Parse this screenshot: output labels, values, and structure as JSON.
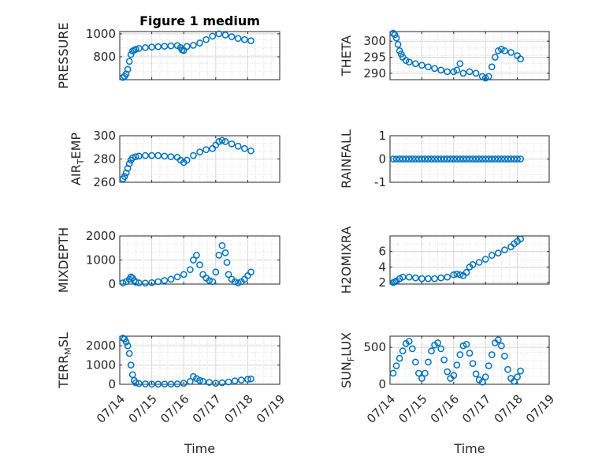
{
  "figure": {
    "title": "Figure 1 medium"
  },
  "colors": {
    "marker": "#0072BD",
    "grid": "#d9d9d9",
    "axis": "#262626"
  },
  "chart_data": [
    {
      "id": "pressure",
      "type": "scatter",
      "title": "Figure 1 medium",
      "ylabel": "PRESSURE",
      "ylabel_sub": "",
      "ylabel_tail": "",
      "ylim": [
        600,
        1020
      ],
      "yticks": [
        800,
        1000
      ],
      "yticklabels": [
        "800",
        "1000"
      ],
      "xlim": [
        0,
        5
      ],
      "xticks": [],
      "xticklabels": [],
      "xlabel": "",
      "grid": true,
      "x": [
        0.1,
        0.15,
        0.2,
        0.25,
        0.3,
        0.35,
        0.4,
        0.45,
        0.5,
        0.6,
        0.8,
        1.0,
        1.2,
        1.4,
        1.6,
        1.8,
        1.9,
        1.95,
        2.0,
        2.1,
        2.3,
        2.5,
        2.7,
        2.9,
        3.1,
        3.3,
        3.5,
        3.7,
        3.9,
        4.1
      ],
      "y": [
        620,
        630,
        650,
        690,
        760,
        820,
        850,
        858,
        865,
        873,
        880,
        885,
        888,
        892,
        895,
        898,
        880,
        860,
        855,
        890,
        900,
        920,
        950,
        980,
        1000,
        990,
        975,
        960,
        950,
        940
      ]
    },
    {
      "id": "theta",
      "type": "scatter",
      "ylabel": "THETA",
      "ylabel_sub": "",
      "ylabel_tail": "",
      "ylim": [
        288,
        303
      ],
      "yticks": [
        290,
        295,
        300
      ],
      "yticklabels": [
        "290",
        "295",
        "300"
      ],
      "xlim": [
        0,
        5
      ],
      "xticks": [],
      "xticklabels": [],
      "xlabel": "",
      "grid": true,
      "x": [
        0.1,
        0.15,
        0.2,
        0.25,
        0.3,
        0.35,
        0.4,
        0.5,
        0.6,
        0.8,
        1.0,
        1.2,
        1.4,
        1.6,
        1.8,
        2.0,
        2.1,
        2.2,
        2.3,
        2.5,
        2.7,
        2.9,
        3.0,
        3.1,
        3.2,
        3.3,
        3.4,
        3.5,
        3.6,
        3.8,
        4.0,
        4.1
      ],
      "y": [
        302.5,
        302,
        301,
        299,
        297,
        296,
        295,
        294,
        293.5,
        293,
        292.5,
        292,
        291.5,
        291,
        290.5,
        290.5,
        291,
        293,
        290,
        290.5,
        290,
        289,
        288.5,
        289,
        292,
        295,
        297,
        297.5,
        297,
        296.5,
        295.5,
        294.5
      ]
    },
    {
      "id": "air_temp",
      "type": "scatter",
      "ylabel": "AIR",
      "ylabel_sub": "T",
      "ylabel_tail": "EMP",
      "ylim": [
        260,
        300
      ],
      "yticks": [
        260,
        280,
        300
      ],
      "yticklabels": [
        "260",
        "280",
        "300"
      ],
      "xlim": [
        0,
        5
      ],
      "xticks": [],
      "xticklabels": [],
      "xlabel": "",
      "grid": true,
      "x": [
        0.1,
        0.15,
        0.2,
        0.25,
        0.3,
        0.35,
        0.4,
        0.5,
        0.6,
        0.8,
        1.0,
        1.2,
        1.4,
        1.6,
        1.8,
        1.9,
        2.0,
        2.1,
        2.3,
        2.5,
        2.7,
        2.9,
        3.0,
        3.1,
        3.2,
        3.3,
        3.5,
        3.7,
        3.9,
        4.1
      ],
      "y": [
        263,
        265,
        268,
        272,
        276,
        279,
        281,
        282,
        282.5,
        283,
        283,
        283,
        282.5,
        282,
        281.5,
        279,
        277,
        279,
        283,
        286,
        288,
        289,
        292,
        295,
        296,
        295,
        293,
        291,
        289,
        287
      ]
    },
    {
      "id": "rainfall",
      "type": "scatter",
      "ylabel": "RAINFALL",
      "ylabel_sub": "",
      "ylabel_tail": "",
      "ylim": [
        -1,
        1
      ],
      "yticks": [
        -1,
        0,
        1
      ],
      "yticklabels": [
        "-1",
        "0",
        "1"
      ],
      "xlim": [
        0,
        5
      ],
      "xticks": [],
      "xticklabels": [],
      "xlabel": "",
      "grid": true,
      "x": [
        0.1,
        0.2,
        0.3,
        0.4,
        0.5,
        0.6,
        0.7,
        0.8,
        0.9,
        1.0,
        1.1,
        1.2,
        1.3,
        1.4,
        1.5,
        1.6,
        1.7,
        1.8,
        1.9,
        2.0,
        2.1,
        2.2,
        2.3,
        2.4,
        2.5,
        2.6,
        2.7,
        2.8,
        2.9,
        3.0,
        3.1,
        3.2,
        3.3,
        3.4,
        3.5,
        3.6,
        3.7,
        3.8,
        3.9,
        4.0,
        4.1
      ],
      "y": [
        0,
        0,
        0,
        0,
        0,
        0,
        0,
        0,
        0,
        0,
        0,
        0,
        0,
        0,
        0,
        0,
        0,
        0,
        0,
        0,
        0,
        0,
        0,
        0,
        0,
        0,
        0,
        0,
        0,
        0,
        0,
        0,
        0,
        0,
        0,
        0,
        0,
        0,
        0,
        0,
        0
      ]
    },
    {
      "id": "mixdepth",
      "type": "scatter",
      "ylabel": "MIXDEPTH",
      "ylabel_sub": "",
      "ylabel_tail": "",
      "ylim": [
        0,
        2000
      ],
      "yticks": [
        0,
        1000,
        2000
      ],
      "yticklabels": [
        "0",
        "1000",
        "2000"
      ],
      "xlim": [
        0,
        5
      ],
      "xticks": [],
      "xticklabels": [],
      "xlabel": "",
      "grid": true,
      "x": [
        0.1,
        0.2,
        0.3,
        0.35,
        0.4,
        0.45,
        0.5,
        0.6,
        0.8,
        1.0,
        1.2,
        1.4,
        1.6,
        1.8,
        2.0,
        2.2,
        2.3,
        2.4,
        2.5,
        2.6,
        2.7,
        2.8,
        2.9,
        3.0,
        3.1,
        3.2,
        3.3,
        3.35,
        3.4,
        3.5,
        3.6,
        3.7,
        3.8,
        3.9,
        4.0,
        4.1
      ],
      "y": [
        50,
        100,
        200,
        300,
        250,
        150,
        80,
        50,
        40,
        60,
        100,
        150,
        200,
        300,
        400,
        600,
        1000,
        1200,
        800,
        400,
        250,
        150,
        100,
        500,
        1200,
        1600,
        1300,
        900,
        400,
        200,
        100,
        50,
        100,
        200,
        350,
        500
      ]
    },
    {
      "id": "h2omixra",
      "type": "scatter",
      "ylabel": "H2OMIXRA",
      "ylabel_sub": "",
      "ylabel_tail": "",
      "ylim": [
        1.8,
        8
      ],
      "yticks": [
        2,
        4,
        6
      ],
      "yticklabels": [
        "2",
        "4",
        "6"
      ],
      "xlim": [
        0,
        5
      ],
      "xticks": [],
      "xticklabels": [],
      "xlabel": "",
      "grid": true,
      "x": [
        0.1,
        0.15,
        0.2,
        0.3,
        0.4,
        0.6,
        0.8,
        1.0,
        1.2,
        1.4,
        1.6,
        1.8,
        2.0,
        2.1,
        2.2,
        2.3,
        2.4,
        2.5,
        2.6,
        2.8,
        3.0,
        3.2,
        3.4,
        3.6,
        3.8,
        3.9,
        4.0,
        4.1
      ],
      "y": [
        2,
        2.1,
        2.2,
        2.5,
        2.7,
        2.7,
        2.6,
        2.5,
        2.5,
        2.5,
        2.6,
        2.7,
        3.0,
        3.1,
        3.0,
        2.9,
        3.3,
        4.0,
        4.3,
        4.6,
        5.0,
        5.5,
        5.8,
        6.2,
        6.6,
        7.0,
        7.3,
        7.6
      ]
    },
    {
      "id": "terr_msl",
      "type": "scatter",
      "ylabel": "TERR",
      "ylabel_sub": "M",
      "ylabel_tail": "SL",
      "ylim": [
        0,
        2500
      ],
      "yticks": [
        0,
        1000,
        2000
      ],
      "yticklabels": [
        "0",
        "1000",
        "2000"
      ],
      "xlim": [
        0,
        5
      ],
      "xticks": [
        0,
        1,
        2,
        3,
        4,
        5
      ],
      "xticklabels": [
        "07/14",
        "07/15",
        "07/16",
        "07/17",
        "07/18",
        "07/19"
      ],
      "xlabel": "Time",
      "grid": true,
      "x": [
        0.1,
        0.15,
        0.2,
        0.25,
        0.3,
        0.35,
        0.4,
        0.45,
        0.5,
        0.6,
        0.8,
        1.0,
        1.2,
        1.4,
        1.6,
        1.8,
        2.0,
        2.2,
        2.3,
        2.4,
        2.5,
        2.6,
        2.8,
        3.0,
        3.2,
        3.4,
        3.6,
        3.8,
        4.0,
        4.1
      ],
      "y": [
        2400,
        2350,
        2200,
        2000,
        1600,
        1000,
        500,
        200,
        80,
        40,
        20,
        10,
        10,
        10,
        10,
        20,
        50,
        150,
        400,
        300,
        200,
        150,
        100,
        50,
        80,
        120,
        180,
        220,
        260,
        280
      ]
    },
    {
      "id": "sun_flux",
      "type": "scatter",
      "ylabel": "SUN",
      "ylabel_sub": "F",
      "ylabel_tail": "LUX",
      "ylim": [
        0,
        650
      ],
      "yticks": [
        0,
        500
      ],
      "yticklabels": [
        "0",
        "500"
      ],
      "xlim": [
        0,
        5
      ],
      "xticks": [
        0,
        1,
        2,
        3,
        4,
        5
      ],
      "xticklabels": [
        "07/14",
        "07/15",
        "07/16",
        "07/17",
        "07/18",
        "07/19"
      ],
      "xlabel": "Time",
      "grid": true,
      "x": [
        0.1,
        0.2,
        0.3,
        0.4,
        0.5,
        0.6,
        0.7,
        0.8,
        0.9,
        1.0,
        1.1,
        1.2,
        1.3,
        1.4,
        1.5,
        1.6,
        1.7,
        1.8,
        1.9,
        2.0,
        2.1,
        2.2,
        2.3,
        2.4,
        2.5,
        2.6,
        2.7,
        2.8,
        2.9,
        3.0,
        3.1,
        3.2,
        3.3,
        3.4,
        3.5,
        3.6,
        3.7,
        3.8,
        3.9,
        4.0,
        4.1
      ],
      "y": [
        150,
        250,
        350,
        450,
        550,
        580,
        480,
        300,
        150,
        80,
        150,
        300,
        450,
        530,
        560,
        480,
        330,
        170,
        80,
        120,
        260,
        400,
        520,
        540,
        420,
        280,
        140,
        60,
        30,
        100,
        250,
        400,
        560,
        600,
        520,
        380,
        200,
        80,
        40,
        100,
        180
      ]
    }
  ]
}
